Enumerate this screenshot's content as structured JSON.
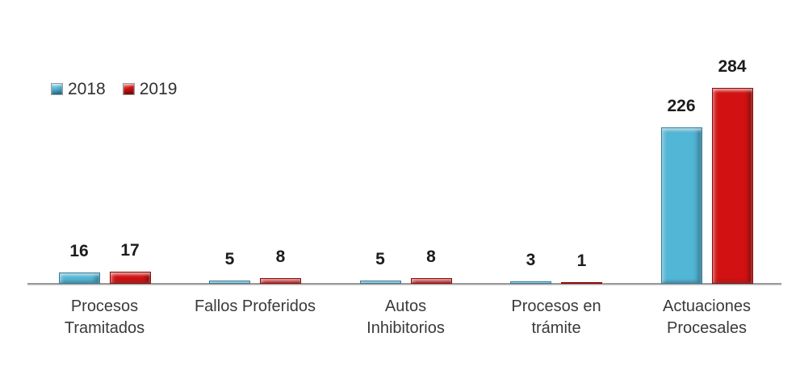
{
  "chart_data": {
    "type": "bar",
    "title": "",
    "xlabel": "",
    "ylabel": "",
    "ylim": [
      0,
      300
    ],
    "grid": false,
    "legend_position": "top-left",
    "value_labels": true,
    "background_color": "#ffffff",
    "axis_line_color": "#9a9a9a",
    "value_label_color": "#1c1c1c",
    "category_label_color": "#3a3a3a",
    "categories": [
      "Procesos Tramitados",
      "Fallos Proferidos",
      "Autos Inhibitorios",
      "Procesos en trámite",
      "Actuaciones Procesales"
    ],
    "category_lines": [
      [
        "Procesos",
        "Tramitados"
      ],
      [
        "Fallos Proferidos"
      ],
      [
        "Autos",
        "Inhibitorios"
      ],
      [
        "Procesos en",
        "trámite"
      ],
      [
        "Actuaciones",
        "Procesales"
      ]
    ],
    "series": [
      {
        "name": "2018",
        "values": [
          16,
          5,
          5,
          3,
          226
        ],
        "color": "#52B6D7",
        "color_light": "#A8E2F1",
        "color_dark": "#2E7FA0"
      },
      {
        "name": "2019",
        "values": [
          17,
          8,
          8,
          1,
          284
        ],
        "color": "#D21212",
        "color_light": "#F08A86",
        "color_dark": "#8F0707"
      }
    ]
  }
}
